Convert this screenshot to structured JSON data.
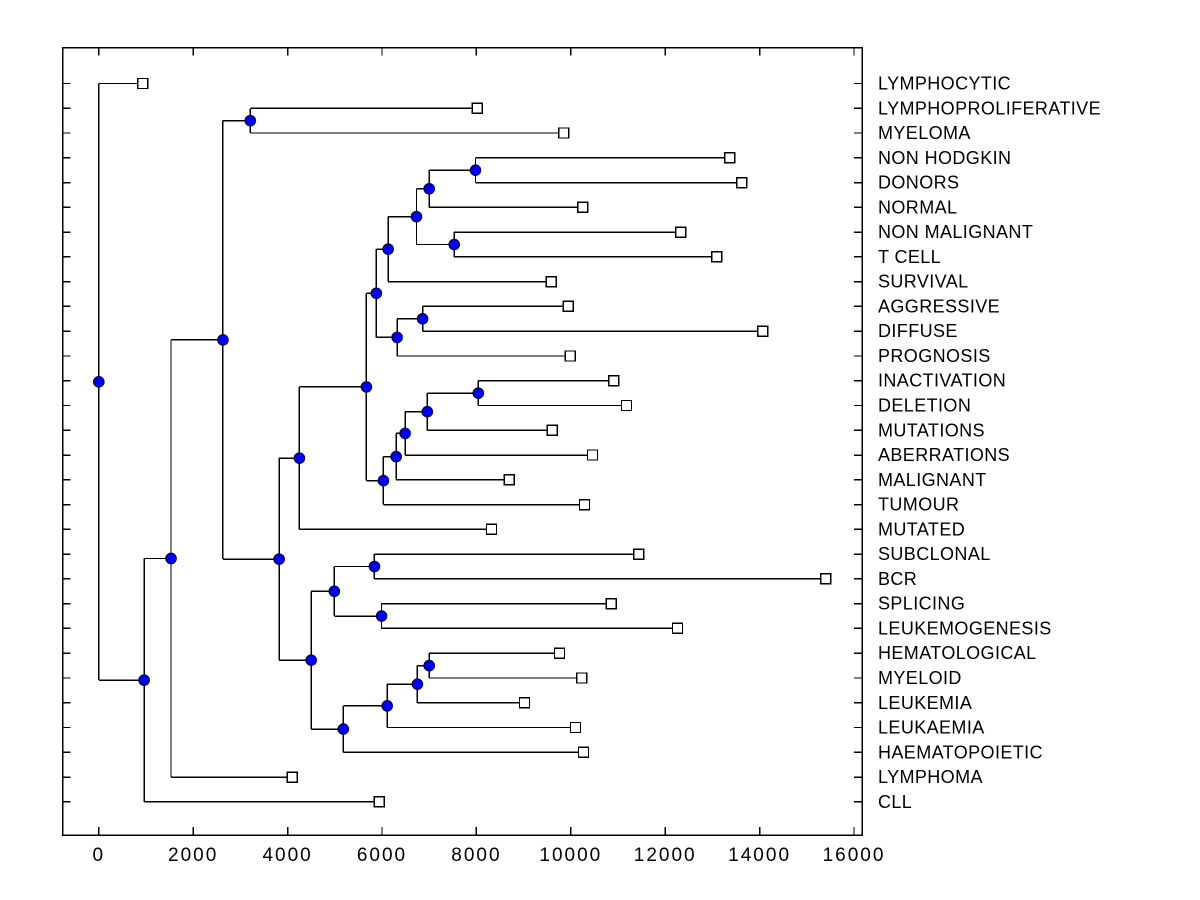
{
  "chart_data": {
    "type": "dendrogram",
    "orientation": "horizontal-left-to-right",
    "title": "",
    "x_axis": {
      "tick_labels": [
        "0",
        "2000",
        "4000",
        "6000",
        "8000",
        "10000",
        "12000",
        "14000",
        "16000"
      ],
      "tick_values": [
        0,
        2000,
        4000,
        6000,
        8000,
        10000,
        12000,
        14000,
        16000
      ],
      "approx_xlim": [
        -770,
        16180
      ]
    },
    "leaves": [
      {
        "label": "LYMPHOCYTIC",
        "value": 930
      },
      {
        "label": "LYMPHOPROLIFERATIVE",
        "value": 8020
      },
      {
        "label": "MYELOMA",
        "value": 9850
      },
      {
        "label": "NON HODGKIN",
        "value": 13370
      },
      {
        "label": "DONORS",
        "value": 13620
      },
      {
        "label": "NORMAL",
        "value": 10250
      },
      {
        "label": "NON MALIGNANT",
        "value": 12330
      },
      {
        "label": "T CELL",
        "value": 13090
      },
      {
        "label": "SURVIVAL",
        "value": 9590
      },
      {
        "label": "AGGRESSIVE",
        "value": 9950
      },
      {
        "label": "DIFFUSE",
        "value": 14070
      },
      {
        "label": "PROGNOSIS",
        "value": 9990
      },
      {
        "label": "INACTIVATION",
        "value": 10910
      },
      {
        "label": "DELETION",
        "value": 11180
      },
      {
        "label": "MUTATIONS",
        "value": 9610
      },
      {
        "label": "ABERRATIONS",
        "value": 10460
      },
      {
        "label": "MALIGNANT",
        "value": 8700
      },
      {
        "label": "TUMOUR",
        "value": 10290
      },
      {
        "label": "MUTATED",
        "value": 8320
      },
      {
        "label": "SUBCLONAL",
        "value": 11440
      },
      {
        "label": "BCR",
        "value": 15400
      },
      {
        "label": "SPLICING",
        "value": 10860
      },
      {
        "label": "LEUKEMOGENESIS",
        "value": 12260
      },
      {
        "label": "HEMATOLOGICAL",
        "value": 9760
      },
      {
        "label": "MYELOID",
        "value": 10230
      },
      {
        "label": "LEUKEMIA",
        "value": 9020
      },
      {
        "label": "LEUKAEMIA",
        "value": 10100
      },
      {
        "label": "HAEMATOPOIETIC",
        "value": 10270
      },
      {
        "label": "LYMPHOMA",
        "value": 4100
      },
      {
        "label": "CLL",
        "value": 5940
      }
    ],
    "tree": {
      "v": 0,
      "c": [
        {
          "leaf": 0
        },
        {
          "v": 960,
          "c": [
            {
              "v": 1530,
              "c": [
                {
                  "v": 2630,
                  "c": [
                    {
                      "v": 3210,
                      "c": [
                        {
                          "leaf": 1
                        },
                        {
                          "leaf": 2
                        }
                      ]
                    },
                    {
                      "v": 3820,
                      "c": [
                        {
                          "v": 4250,
                          "c": [
                            {
                              "v": 5670,
                              "c": [
                                {
                                  "v": 5880,
                                  "c": [
                                    {
                                      "v": 6130,
                                      "c": [
                                        {
                                          "v": 6730,
                                          "c": [
                                            {
                                              "v": 7000,
                                              "c": [
                                                {
                                                  "v": 7980,
                                                  "c": [
                                                    {
                                                      "leaf": 3
                                                    },
                                                    {
                                                      "leaf": 4
                                                    }
                                                  ]
                                                },
                                                {
                                                  "leaf": 5
                                                }
                                              ]
                                            },
                                            {
                                              "v": 7530,
                                              "c": [
                                                {
                                                  "leaf": 6
                                                },
                                                {
                                                  "leaf": 7
                                                }
                                              ]
                                            }
                                          ]
                                        },
                                        {
                                          "leaf": 8
                                        }
                                      ]
                                    },
                                    {
                                      "v": 6320,
                                      "c": [
                                        {
                                          "v": 6860,
                                          "c": [
                                            {
                                              "leaf": 9
                                            },
                                            {
                                              "leaf": 10
                                            }
                                          ]
                                        },
                                        {
                                          "leaf": 11
                                        }
                                      ]
                                    }
                                  ]
                                },
                                {
                                  "v": 6030,
                                  "c": [
                                    {
                                      "v": 6300,
                                      "c": [
                                        {
                                          "v": 6490,
                                          "c": [
                                            {
                                              "v": 6960,
                                              "c": [
                                                {
                                                  "v": 8040,
                                                  "c": [
                                                    {
                                                      "leaf": 12
                                                    },
                                                    {
                                                      "leaf": 13
                                                    }
                                                  ]
                                                },
                                                {
                                                  "leaf": 14
                                                }
                                              ]
                                            },
                                            {
                                              "leaf": 15
                                            }
                                          ]
                                        },
                                        {
                                          "leaf": 16
                                        }
                                      ]
                                    },
                                    {
                                      "leaf": 17
                                    }
                                  ]
                                }
                              ]
                            },
                            {
                              "leaf": 18
                            }
                          ]
                        },
                        {
                          "v": 4500,
                          "c": [
                            {
                              "v": 4990,
                              "c": [
                                {
                                  "v": 5840,
                                  "c": [
                                    {
                                      "leaf": 19
                                    },
                                    {
                                      "leaf": 20
                                    }
                                  ]
                                },
                                {
                                  "v": 5990,
                                  "c": [
                                    {
                                      "leaf": 21
                                    },
                                    {
                                      "leaf": 22
                                    }
                                  ]
                                }
                              ]
                            },
                            {
                              "v": 5180,
                              "c": [
                                {
                                  "v": 6110,
                                  "c": [
                                    {
                                      "v": 6750,
                                      "c": [
                                        {
                                          "v": 7000,
                                          "c": [
                                            {
                                              "leaf": 23
                                            },
                                            {
                                              "leaf": 24
                                            }
                                          ]
                                        },
                                        {
                                          "leaf": 25
                                        }
                                      ]
                                    },
                                    {
                                      "leaf": 26
                                    }
                                  ]
                                },
                                {
                                  "leaf": 27
                                }
                              ]
                            }
                          ]
                        }
                      ]
                    }
                  ]
                },
                {
                  "leaf": 28
                }
              ]
            },
            {
              "leaf": 29
            }
          ]
        }
      ]
    },
    "style": {
      "branch_color": "#000000",
      "internal_node_marker": "filled-circle",
      "internal_node_fill": "#0000ff",
      "internal_node_edge": "#000066",
      "leaf_marker": "open-square",
      "leaf_marker_fill": "#ffffff",
      "leaf_marker_edge": "#000000",
      "axis_color": "#000000",
      "background": "#ffffff"
    }
  }
}
